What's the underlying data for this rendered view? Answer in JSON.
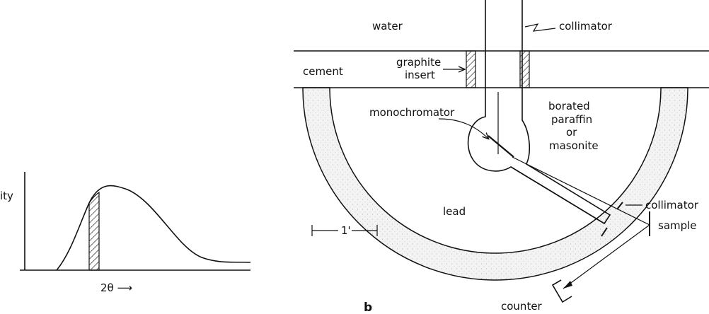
{
  "panel_a": {
    "y_axis_label": "ity",
    "x_axis_label": "2θ ⟶"
  },
  "panel_b": {
    "panel_letter": "b",
    "labels": {
      "water": "water",
      "collimator_top": "collimator",
      "cement": "cement",
      "graphite_insert_line1": "graphite",
      "graphite_insert_line2": "insert",
      "monochromator": "monochromator",
      "borated_line1": "borated",
      "borated_line2": "paraffin",
      "borated_line3": "or",
      "borated_line4": "masonite",
      "collimator_lower": "collimator",
      "lead": "lead",
      "scale": "1'",
      "sample": "sample",
      "counter": "counter"
    }
  }
}
